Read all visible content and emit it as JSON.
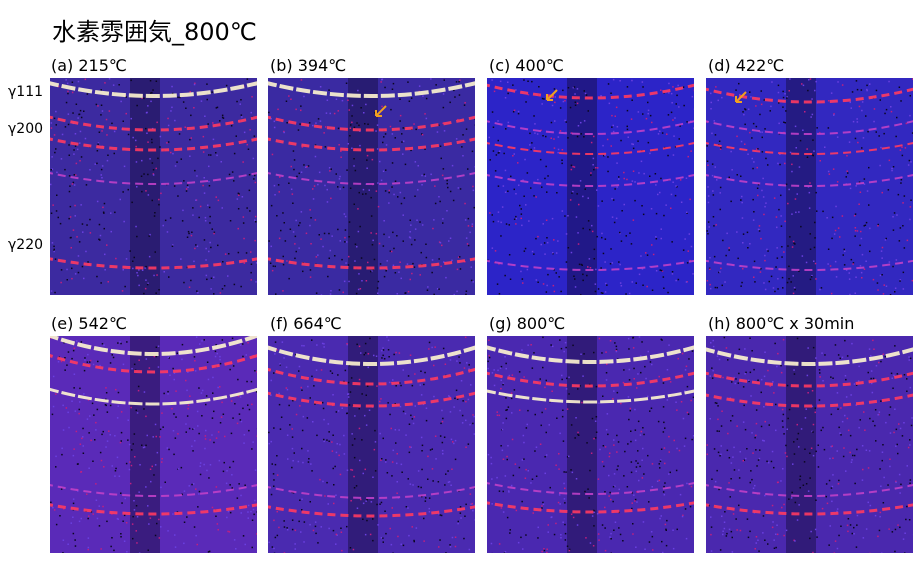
{
  "title": "水素雰囲気_800℃",
  "ring_labels": [
    "γ111",
    "γ200",
    "γ220"
  ],
  "panels": [
    {
      "label": "(a) 215℃",
      "bg": "#3c2aa0",
      "arrow": false
    },
    {
      "label": "(b) 394℃",
      "bg": "#3a2aa2",
      "arrow": true
    },
    {
      "label": "(c) 400℃",
      "bg": "#2c24c8",
      "arrow": true
    },
    {
      "label": "(d) 422℃",
      "bg": "#3228c0",
      "arrow": true
    },
    {
      "label": "(e) 542℃",
      "bg": "#5a2ab8",
      "arrow": false
    },
    {
      "label": "(f) 664℃",
      "bg": "#4a2ab0",
      "arrow": false
    },
    {
      "label": "(g) 800℃",
      "bg": "#4a28b0",
      "arrow": false
    },
    {
      "label": "(h) 800℃ x 30min",
      "bg": "#4a28ae",
      "arrow": false
    }
  ],
  "colors": {
    "ring_bright": "#fff6d0",
    "ring_mid": "#ff3a60",
    "ring_faint": "#c040c8",
    "arrow": "#f0a020"
  }
}
